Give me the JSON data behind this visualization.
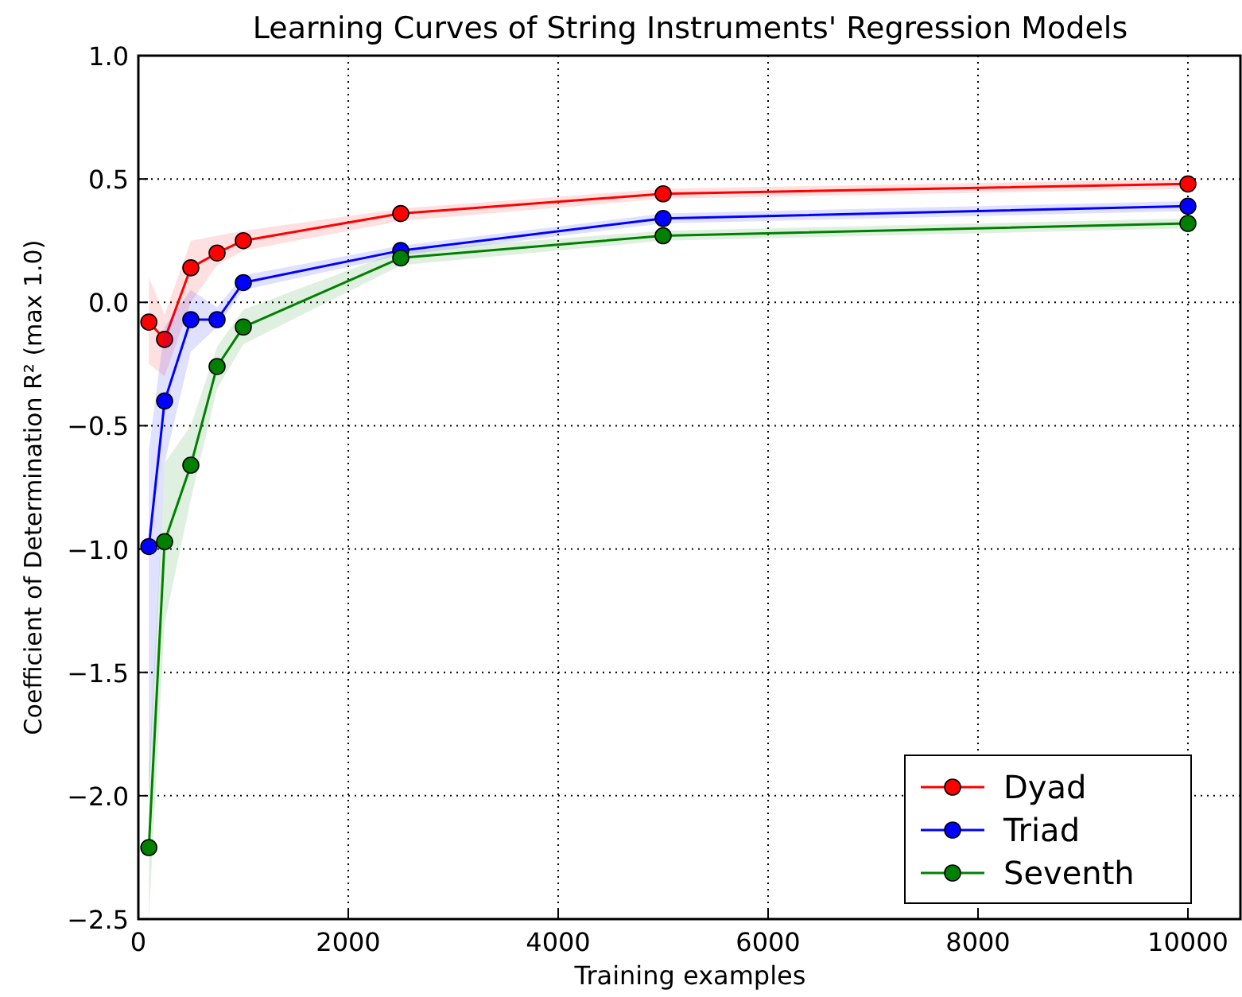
{
  "chart_data": {
    "type": "line",
    "title": "Learning Curves of String Instruments' Regression Models",
    "xlabel": "Training examples",
    "ylabel": "Coefficient of Determination R² (max 1.0)",
    "x": [
      100,
      250,
      500,
      750,
      1000,
      2500,
      5000,
      10000
    ],
    "xlim": [
      0,
      10500
    ],
    "xticks": [
      0,
      2000,
      4000,
      6000,
      8000,
      10000
    ],
    "ylim": [
      -2.5,
      1.0
    ],
    "yticks": [
      {
        "value": -2.5,
        "label": "−2.5"
      },
      {
        "value": -2.0,
        "label": "−2.0"
      },
      {
        "value": -1.5,
        "label": "−1.5"
      },
      {
        "value": -1.0,
        "label": "−1.0"
      },
      {
        "value": -0.5,
        "label": "−0.5"
      },
      {
        "value": 0.0,
        "label": "0.0"
      },
      {
        "value": 0.5,
        "label": "0.5"
      },
      {
        "value": 1.0,
        "label": "1.0"
      }
    ],
    "grid": true,
    "legend": "bottom right",
    "marker": "circle",
    "line_style": "solid",
    "series": [
      {
        "name": "Dyad",
        "color": "#ff0000",
        "values": [
          -0.08,
          -0.15,
          0.14,
          0.2,
          0.25,
          0.36,
          0.44,
          0.48
        ],
        "lower": [
          -0.25,
          -0.3,
          0.0,
          0.15,
          0.21,
          0.33,
          0.42,
          0.46
        ],
        "upper": [
          0.1,
          -0.05,
          0.25,
          0.27,
          0.29,
          0.38,
          0.46,
          0.5
        ]
      },
      {
        "name": "Triad",
        "color": "#0000ff",
        "values": [
          -0.99,
          -0.4,
          -0.07,
          -0.07,
          0.08,
          0.21,
          0.34,
          0.39
        ],
        "lower": [
          -2.0,
          -0.65,
          -0.2,
          -0.1,
          0.05,
          0.19,
          0.32,
          0.37
        ],
        "upper": [
          -0.6,
          -0.1,
          0.05,
          -0.02,
          0.11,
          0.23,
          0.36,
          0.41
        ]
      },
      {
        "name": "Seventh",
        "color": "#008000",
        "values": [
          -2.21,
          -0.97,
          -0.66,
          -0.26,
          -0.1,
          0.18,
          0.27,
          0.32
        ],
        "lower": [
          -2.5,
          -1.3,
          -0.8,
          -0.35,
          -0.17,
          0.15,
          0.25,
          0.3
        ],
        "upper": [
          -1.9,
          -0.65,
          -0.5,
          -0.18,
          -0.03,
          0.21,
          0.29,
          0.34
        ]
      }
    ]
  }
}
